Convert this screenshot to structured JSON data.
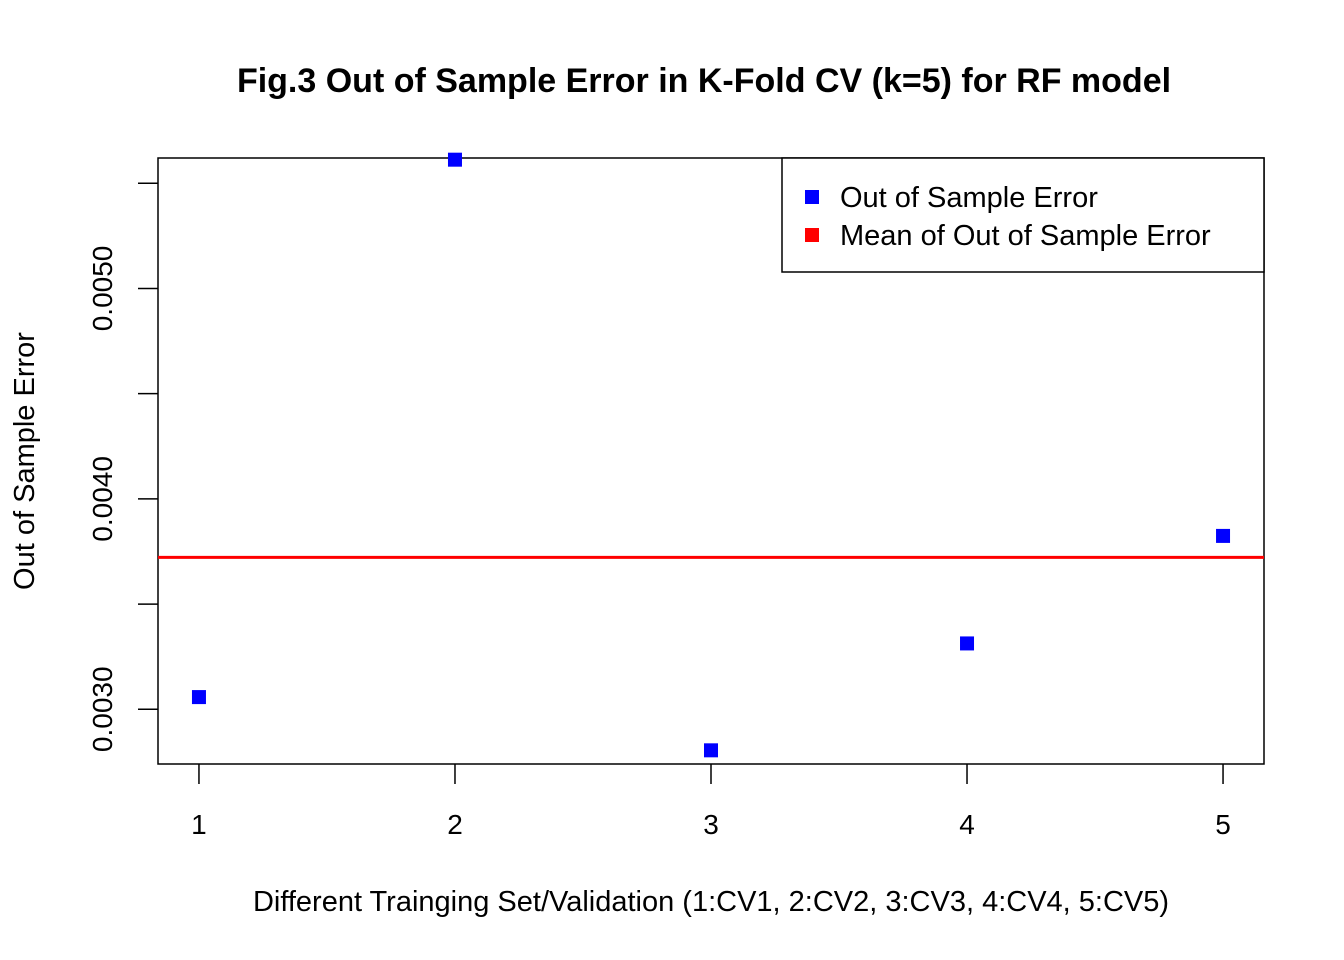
{
  "chart_data": {
    "type": "scatter",
    "title": "Fig.3 Out of Sample Error in K-Fold CV (k=5) for RF model",
    "xlabel": "Different Trainging Set/Validation (1:CV1, 2:CV2, 3:CV3, 4:CV4, 5:CV5)",
    "ylabel": "Out of Sample Error",
    "xlim": [
      0.84,
      5.16
    ],
    "ylim": [
      0.00274,
      0.00562
    ],
    "x_ticks": [
      1,
      2,
      3,
      4,
      5
    ],
    "x_tick_labels": [
      "1",
      "2",
      "3",
      "4",
      "5"
    ],
    "y_ticks": [
      0.003,
      0.0035,
      0.004,
      0.0045,
      0.005,
      0.0055
    ],
    "y_tick_labels": [
      "0.0030",
      "",
      "0.0040",
      "",
      "0.0050",
      ""
    ],
    "series": [
      {
        "name": "Out of Sample Error",
        "color": "#0000ff",
        "marker": "square",
        "x": [
          1,
          2,
          3,
          4,
          5
        ],
        "values": [
          0.003058,
          0.005612,
          0.002805,
          0.003313,
          0.003824
        ]
      }
    ],
    "hlines": [
      {
        "name": "Mean of Out of Sample Error",
        "color": "#ff0000",
        "value": 0.003722
      }
    ],
    "legend": {
      "position": "top-right",
      "entries": [
        {
          "label": "Out of Sample Error",
          "color": "#0000ff"
        },
        {
          "label": "Mean of Out of Sample Error",
          "color": "#ff0000"
        }
      ]
    },
    "grid": false
  }
}
